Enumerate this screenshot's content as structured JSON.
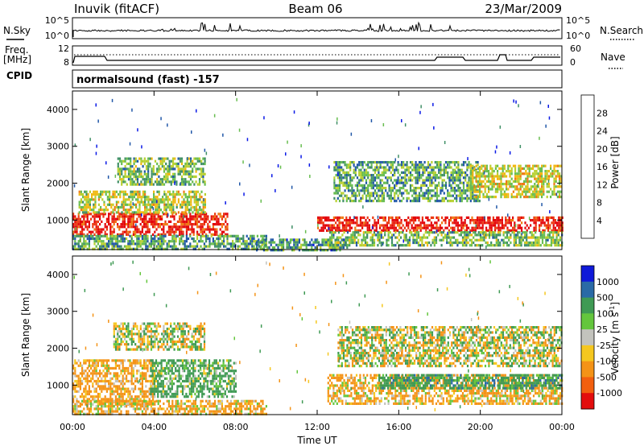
{
  "header": {
    "station": "Inuvik (fitACF)",
    "beam": "Beam 06",
    "date": "23/Mar/2009"
  },
  "top_panel": {
    "left_label": "N.Sky",
    "ticks_left": [
      "10^5",
      "10^0"
    ],
    "ticks_right": [
      "10^5",
      "10^0"
    ],
    "right_label": "N.Search"
  },
  "freq_panel": {
    "label_line1": "Freq.",
    "label_line2": "[MHz]",
    "ticks_left": [
      "12",
      "8"
    ],
    "ticks_right": [
      "60",
      "0"
    ],
    "right_label": "Nave"
  },
  "cpid": {
    "label": "CPID",
    "value": "normalsound (fast) -157"
  },
  "colors": {
    "power": [
      "#0a19e6",
      "#2157a8",
      "#3f8f66",
      "#68bd50",
      "#b8d030",
      "#f0b810",
      "#ef7a14",
      "#ec3a12",
      "#e3060a"
    ],
    "velocity": [
      "#e30d0d",
      "#f25f0f",
      "#f49317",
      "#f5c71f",
      "#c3c3bd",
      "#64c63d",
      "#3f9a54",
      "#2a6aa6",
      "#0f19d9"
    ]
  },
  "chart_data": [
    {
      "type": "heatmap",
      "panel": "power",
      "title": "",
      "xlabel": "Time UT",
      "ylabel": "Slant Range [km]",
      "x_ticks": [
        "00:00",
        "04:00",
        "08:00",
        "12:00",
        "16:00",
        "20:00",
        "00:00"
      ],
      "y_ticks": [
        1000,
        2000,
        3000,
        4000
      ],
      "xlim_hours": [
        0,
        24
      ],
      "ylim_km": [
        200,
        4500
      ],
      "colorbar": {
        "label": "Power [dB]",
        "ticks": [
          "4",
          "8",
          "12",
          "16",
          "20",
          "24",
          "28"
        ],
        "range": [
          0,
          30
        ]
      },
      "echo_regions": [
        {
          "t0": 0.0,
          "t1": 7.6,
          "r0": 600,
          "r1": 1200,
          "value": 27
        },
        {
          "t0": 0.3,
          "t1": 6.5,
          "r0": 1200,
          "r1": 1800,
          "value": 15
        },
        {
          "t0": 0.0,
          "t1": 9.5,
          "r0": 250,
          "r1": 600,
          "value": 10
        },
        {
          "t0": 2.2,
          "t1": 6.5,
          "r0": 2000,
          "r1": 2700,
          "value": 12
        },
        {
          "t0": 9.0,
          "t1": 13.5,
          "r0": 220,
          "r1": 500,
          "value": 9
        },
        {
          "t0": 12.0,
          "t1": 24.0,
          "r0": 700,
          "r1": 1100,
          "value": 28
        },
        {
          "t0": 12.5,
          "t1": 24.0,
          "r0": 300,
          "r1": 700,
          "value": 12
        },
        {
          "t0": 12.8,
          "t1": 20.0,
          "r0": 1500,
          "r1": 2600,
          "value": 10
        },
        {
          "t0": 19.5,
          "t1": 24.0,
          "r0": 1600,
          "r1": 2500,
          "value": 16
        }
      ]
    },
    {
      "type": "heatmap",
      "panel": "velocity",
      "title": "",
      "xlabel": "Time UT",
      "ylabel": "Slant Range [km]",
      "x_ticks": [
        "00:00",
        "04:00",
        "08:00",
        "12:00",
        "16:00",
        "20:00",
        "00:00"
      ],
      "y_ticks": [
        1000,
        2000,
        3000,
        4000
      ],
      "xlim_hours": [
        0,
        24
      ],
      "ylim_km": [
        200,
        4500
      ],
      "colorbar": {
        "label": "Velocity [m s^-1]",
        "ticks": [
          "1000",
          "500",
          "100",
          "25",
          "-25",
          "-100",
          "-500",
          "-1000"
        ]
      },
      "echo_regions": [
        {
          "t0": 0.0,
          "t1": 4.0,
          "r0": 500,
          "r1": 1700,
          "value": -200
        },
        {
          "t0": 3.8,
          "t1": 8.0,
          "r0": 700,
          "r1": 1700,
          "value": 200
        },
        {
          "t0": 0.0,
          "t1": 9.5,
          "r0": 250,
          "r1": 600,
          "value": -150
        },
        {
          "t0": 2.0,
          "t1": 6.5,
          "r0": 2000,
          "r1": 2700,
          "value": 0
        },
        {
          "t0": 12.5,
          "t1": 24.0,
          "r0": 500,
          "r1": 1300,
          "value": -150
        },
        {
          "t0": 15.0,
          "t1": 24.0,
          "r0": 900,
          "r1": 1300,
          "value": 300
        },
        {
          "t0": 13.0,
          "t1": 24.0,
          "r0": 1500,
          "r1": 2600,
          "value": 0
        }
      ]
    }
  ]
}
